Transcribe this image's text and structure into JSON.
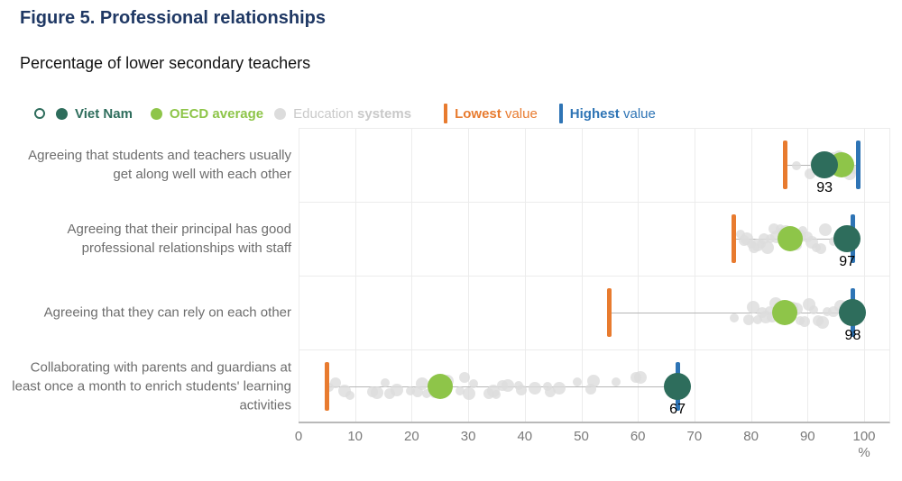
{
  "figure": {
    "title": "Figure 5. Professional relationships",
    "subtitle": "Percentage of lower secondary teachers"
  },
  "colors": {
    "title": "#1f3864",
    "viet_nam": "#2e6d5c",
    "oecd_average": "#8ec549",
    "education_systems": "#dcdcdc",
    "lowest": "#e87b2f",
    "highest": "#2e74b5",
    "grid": "#ececec",
    "category_text": "#6d6d6d",
    "axis_text": "#7a7a7a",
    "legend_gray_text": "#c9c9c9"
  },
  "legend": {
    "viet_nam": {
      "label": "Viet Nam"
    },
    "oecd": {
      "label": "OECD average"
    },
    "education": {
      "word1": "Education",
      "word2": "systems"
    },
    "lowest": {
      "word1": "Lowest",
      "word2": "value"
    },
    "highest": {
      "word1": "Highest",
      "word2": "value"
    }
  },
  "chart_data": {
    "type": "scatter",
    "title": "Figure 5. Professional relationships",
    "subtitle": "Percentage of lower secondary teachers",
    "xlabel": "%",
    "xlim": [
      0,
      104
    ],
    "xticks": [
      0,
      10,
      20,
      30,
      40,
      50,
      60,
      70,
      80,
      90,
      100
    ],
    "grid": true,
    "legend_position": "top",
    "legend_entries": [
      "Viet Nam",
      "OECD average",
      "Education systems",
      "Lowest value",
      "Highest value"
    ],
    "rows": [
      {
        "category": "Agreeing that students and teachers usually get along well with each other",
        "lowest": 86,
        "highest": 99,
        "viet_nam": 93,
        "viet_nam_label": "93",
        "oecd_average": 96,
        "education_systems": [
          88,
          90.5,
          91.5,
          92,
          92.5,
          93,
          93.5,
          94,
          94.5,
          95,
          95.5,
          96,
          96.5,
          97,
          97.5,
          98.3
        ]
      },
      {
        "category": "Agreeing that their principal has good professional relationships with staff",
        "lowest": 77,
        "highest": 98,
        "viet_nam": 97,
        "viet_nam_label": "97",
        "oecd_average": 87,
        "education_systems": [
          78.2,
          78.8,
          79.3,
          80,
          80.6,
          81.2,
          81.8,
          82.3,
          82.9,
          83.4,
          84,
          84.6,
          85.1,
          85.7,
          86.2,
          86.8,
          88,
          88.6,
          89.2,
          90,
          90.8,
          91.5,
          92.3,
          93.2,
          94.5,
          95.8
        ]
      },
      {
        "category": "Agreeing that they can rely on each other",
        "lowest": 55,
        "highest": 98,
        "viet_nam": 98,
        "viet_nam_label": "98",
        "oecd_average": 86,
        "education_systems": [
          77,
          79.6,
          80.4,
          81.2,
          81.9,
          82.6,
          83.2,
          83.8,
          84.4,
          85,
          85.6,
          86.1,
          86.7,
          87.4,
          88,
          88.7,
          89.4,
          90.2,
          91,
          91.8,
          92.6,
          93.5,
          94.6,
          95.8
        ]
      },
      {
        "category": "Collaborating with parents and guardians at least once a month to enrich students' learning activities",
        "lowest": 5,
        "highest": 67,
        "viet_nam": 67,
        "viet_nam_label": "67",
        "oecd_average": 25,
        "education_systems": [
          5.5,
          6.5,
          8.2,
          9.1,
          13.1,
          13.9,
          15.3,
          16.1,
          17.4,
          19.8,
          21.1,
          21.9,
          22.7,
          24.1,
          26.3,
          28.5,
          29.3,
          30.1,
          30.9,
          33.7,
          34.4,
          34.9,
          36,
          37,
          38.9,
          39.4,
          41.8,
          44,
          44.5,
          46.1,
          49.3,
          51.7,
          52.2,
          56.1,
          59.6,
          60.4
        ]
      }
    ]
  }
}
